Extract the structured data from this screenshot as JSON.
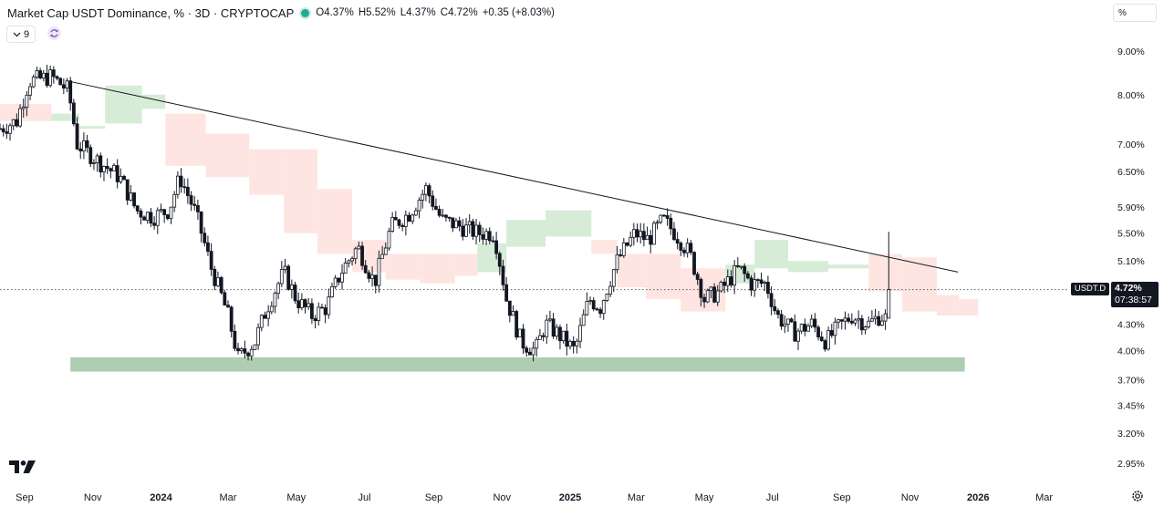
{
  "header": {
    "title": "Market Cap USDT Dominance, % · 3D · CRYPTOCAP",
    "open_label": "O",
    "open": "4.37%",
    "high_label": "H",
    "high": "5.52%",
    "low_label": "L",
    "low": "4.37%",
    "close_label": "C",
    "close": "4.72%",
    "change": "+0.35 (+8.03%)"
  },
  "indicator": {
    "count": "9"
  },
  "scale_mode": "%",
  "symbol_tag": "USDT.D",
  "last_price": "4.72%",
  "countdown": "07:38:57",
  "colors": {
    "up": "#089981",
    "down": "#131722",
    "trendline": "#131722",
    "cloud_bull": "#c8e6c9",
    "cloud_bear": "#fddcd7",
    "support_zone": "#aecdb1"
  },
  "chart_data": {
    "type": "candlestick",
    "scale": "log",
    "ylim": [
      2.85,
      9.6
    ],
    "y_ticks": [
      "9.00%",
      "8.00%",
      "7.00%",
      "6.50%",
      "5.90%",
      "5.50%",
      "5.10%",
      "4.30%",
      "4.00%",
      "3.70%",
      "3.45%",
      "3.20%",
      "2.95%"
    ],
    "y_tick_values": [
      9.0,
      8.0,
      7.0,
      6.5,
      5.9,
      5.5,
      5.1,
      4.3,
      4.0,
      3.7,
      3.45,
      3.2,
      2.95
    ],
    "x_ticks": [
      "Sep",
      "Nov",
      "2024",
      "Mar",
      "May",
      "Jul",
      "Sep",
      "Nov",
      "2025",
      "Mar",
      "May",
      "Jul",
      "Sep",
      "Nov",
      "2026",
      "Mar"
    ],
    "x_tick_dates": [
      "2023-09-01",
      "2023-11-01",
      "2024-01-01",
      "2024-03-01",
      "2024-05-01",
      "2024-07-01",
      "2024-09-01",
      "2024-11-01",
      "2025-01-01",
      "2025-03-01",
      "2025-05-01",
      "2025-07-01",
      "2025-09-01",
      "2025-11-01",
      "2026-01-01",
      "2026-03-01"
    ],
    "x_range": [
      "2023-08-10",
      "2026-04-25"
    ],
    "bar_interval_days": 3,
    "trendline": [
      [
        "2023-10-10",
        8.3
      ],
      [
        "2025-12-14",
        4.95
      ]
    ],
    "support_zone": {
      "start": "2023-10-12",
      "end": "2025-12-20",
      "low": 3.78,
      "high": 3.93
    },
    "last_value_line": 4.72,
    "price_path": [
      [
        "2023-08-10",
        7.3
      ],
      [
        "2023-08-25",
        7.45
      ],
      [
        "2023-09-05",
        8.3
      ],
      [
        "2023-09-25",
        8.4
      ],
      [
        "2023-10-10",
        8.1
      ],
      [
        "2023-10-18",
        7.0
      ],
      [
        "2023-11-05",
        6.7
      ],
      [
        "2023-11-25",
        6.4
      ],
      [
        "2023-12-10",
        5.85
      ],
      [
        "2023-12-25",
        5.75
      ],
      [
        "2024-01-08",
        5.85
      ],
      [
        "2024-01-18",
        6.4
      ],
      [
        "2024-02-01",
        5.8
      ],
      [
        "2024-02-15",
        5.0
      ],
      [
        "2024-03-01",
        4.4
      ],
      [
        "2024-03-10",
        3.92
      ],
      [
        "2024-03-25",
        4.1
      ],
      [
        "2024-04-05",
        4.5
      ],
      [
        "2024-04-20",
        4.95
      ],
      [
        "2024-05-01",
        4.6
      ],
      [
        "2024-05-15",
        4.4
      ],
      [
        "2024-05-28",
        4.5
      ],
      [
        "2024-06-10",
        4.95
      ],
      [
        "2024-06-25",
        5.3
      ],
      [
        "2024-07-10",
        4.8
      ],
      [
        "2024-07-25",
        5.6
      ],
      [
        "2024-08-10",
        5.8
      ],
      [
        "2024-08-25",
        6.2
      ],
      [
        "2024-09-08",
        5.7
      ],
      [
        "2024-09-25",
        5.6
      ],
      [
        "2024-10-10",
        5.5
      ],
      [
        "2024-10-25",
        5.5
      ],
      [
        "2024-11-05",
        4.6
      ],
      [
        "2024-11-18",
        4.1
      ],
      [
        "2024-12-01",
        4.0
      ],
      [
        "2024-12-10",
        4.3
      ],
      [
        "2024-12-20",
        4.2
      ],
      [
        "2025-01-05",
        4.0
      ],
      [
        "2025-01-18",
        4.6
      ],
      [
        "2025-01-28",
        4.5
      ],
      [
        "2025-02-12",
        5.1
      ],
      [
        "2025-02-28",
        5.5
      ],
      [
        "2025-03-12",
        5.4
      ],
      [
        "2025-03-25",
        5.7
      ],
      [
        "2025-04-05",
        5.5
      ],
      [
        "2025-04-18",
        5.2
      ],
      [
        "2025-05-01",
        4.6
      ],
      [
        "2025-05-15",
        4.7
      ],
      [
        "2025-06-01",
        5.0
      ],
      [
        "2025-06-12",
        4.8
      ],
      [
        "2025-06-25",
        4.8
      ],
      [
        "2025-07-05",
        4.4
      ],
      [
        "2025-07-20",
        4.2
      ],
      [
        "2025-08-05",
        4.3
      ],
      [
        "2025-08-18",
        4.1
      ],
      [
        "2025-08-28",
        4.25
      ],
      [
        "2025-09-10",
        4.4
      ],
      [
        "2025-09-25",
        4.3
      ],
      [
        "2025-10-05",
        4.4
      ],
      [
        "2025-10-10",
        4.37
      ],
      [
        "2025-10-13",
        4.72
      ]
    ],
    "ichimoku_cloud": [
      {
        "start": "2023-08-10",
        "end": "2023-09-25",
        "a": 7.8,
        "b": 7.45,
        "sentiment": "bear"
      },
      {
        "start": "2023-09-25",
        "end": "2023-10-20",
        "a": 7.6,
        "b": 7.45,
        "sentiment": "bull"
      },
      {
        "start": "2023-10-20",
        "end": "2023-11-12",
        "a": 7.35,
        "b": 7.35,
        "sentiment": "bull"
      },
      {
        "start": "2023-11-12",
        "end": "2023-12-15",
        "a": 8.2,
        "b": 7.4,
        "sentiment": "bull"
      },
      {
        "start": "2023-12-15",
        "end": "2024-01-05",
        "a": 8.0,
        "b": 7.7,
        "sentiment": "bull"
      },
      {
        "start": "2024-01-05",
        "end": "2024-02-10",
        "a": 7.6,
        "b": 6.6,
        "sentiment": "bear"
      },
      {
        "start": "2024-02-10",
        "end": "2024-03-20",
        "a": 7.2,
        "b": 6.4,
        "sentiment": "bear"
      },
      {
        "start": "2024-03-20",
        "end": "2024-04-20",
        "a": 6.9,
        "b": 6.1,
        "sentiment": "bear"
      },
      {
        "start": "2024-04-20",
        "end": "2024-05-20",
        "a": 6.9,
        "b": 5.5,
        "sentiment": "bear"
      },
      {
        "start": "2024-05-20",
        "end": "2024-06-20",
        "a": 6.2,
        "b": 5.2,
        "sentiment": "bear"
      },
      {
        "start": "2024-06-20",
        "end": "2024-07-20",
        "a": 5.4,
        "b": 4.95,
        "sentiment": "bear"
      },
      {
        "start": "2024-07-20",
        "end": "2024-08-20",
        "a": 5.2,
        "b": 4.85,
        "sentiment": "bear"
      },
      {
        "start": "2024-08-20",
        "end": "2024-09-20",
        "a": 5.2,
        "b": 4.8,
        "sentiment": "bear"
      },
      {
        "start": "2024-09-20",
        "end": "2024-10-10",
        "a": 5.2,
        "b": 4.9,
        "sentiment": "bear"
      },
      {
        "start": "2024-10-10",
        "end": "2024-11-05",
        "a": 5.35,
        "b": 4.95,
        "sentiment": "bull"
      },
      {
        "start": "2024-11-05",
        "end": "2024-12-10",
        "a": 5.7,
        "b": 5.3,
        "sentiment": "bull"
      },
      {
        "start": "2024-12-10",
        "end": "2025-01-20",
        "a": 5.85,
        "b": 5.45,
        "sentiment": "bull"
      },
      {
        "start": "2025-01-20",
        "end": "2025-02-12",
        "a": 5.4,
        "b": 5.2,
        "sentiment": "bear"
      },
      {
        "start": "2025-02-12",
        "end": "2025-03-10",
        "a": 5.2,
        "b": 4.75,
        "sentiment": "bear"
      },
      {
        "start": "2025-03-10",
        "end": "2025-04-10",
        "a": 5.2,
        "b": 4.6,
        "sentiment": "bear"
      },
      {
        "start": "2025-04-10",
        "end": "2025-05-20",
        "a": 5.0,
        "b": 4.45,
        "sentiment": "bear"
      },
      {
        "start": "2025-05-20",
        "end": "2025-06-15",
        "a": 5.05,
        "b": 4.8,
        "sentiment": "bull"
      },
      {
        "start": "2025-06-15",
        "end": "2025-07-15",
        "a": 5.4,
        "b": 5.0,
        "sentiment": "bull"
      },
      {
        "start": "2025-07-15",
        "end": "2025-08-20",
        "a": 5.1,
        "b": 4.95,
        "sentiment": "bull"
      },
      {
        "start": "2025-08-20",
        "end": "2025-09-25",
        "a": 5.05,
        "b": 5.0,
        "sentiment": "bull"
      },
      {
        "start": "2025-09-25",
        "end": "2025-10-25",
        "a": 5.2,
        "b": 4.7,
        "sentiment": "bear"
      },
      {
        "start": "2025-10-25",
        "end": "2025-11-25",
        "a": 5.15,
        "b": 4.45,
        "sentiment": "bear"
      },
      {
        "start": "2025-11-25",
        "end": "2025-12-15",
        "a": 4.65,
        "b": 4.4,
        "sentiment": "bear"
      },
      {
        "start": "2025-12-15",
        "end": "2026-01-01",
        "a": 4.6,
        "b": 4.4,
        "sentiment": "bear"
      }
    ]
  }
}
